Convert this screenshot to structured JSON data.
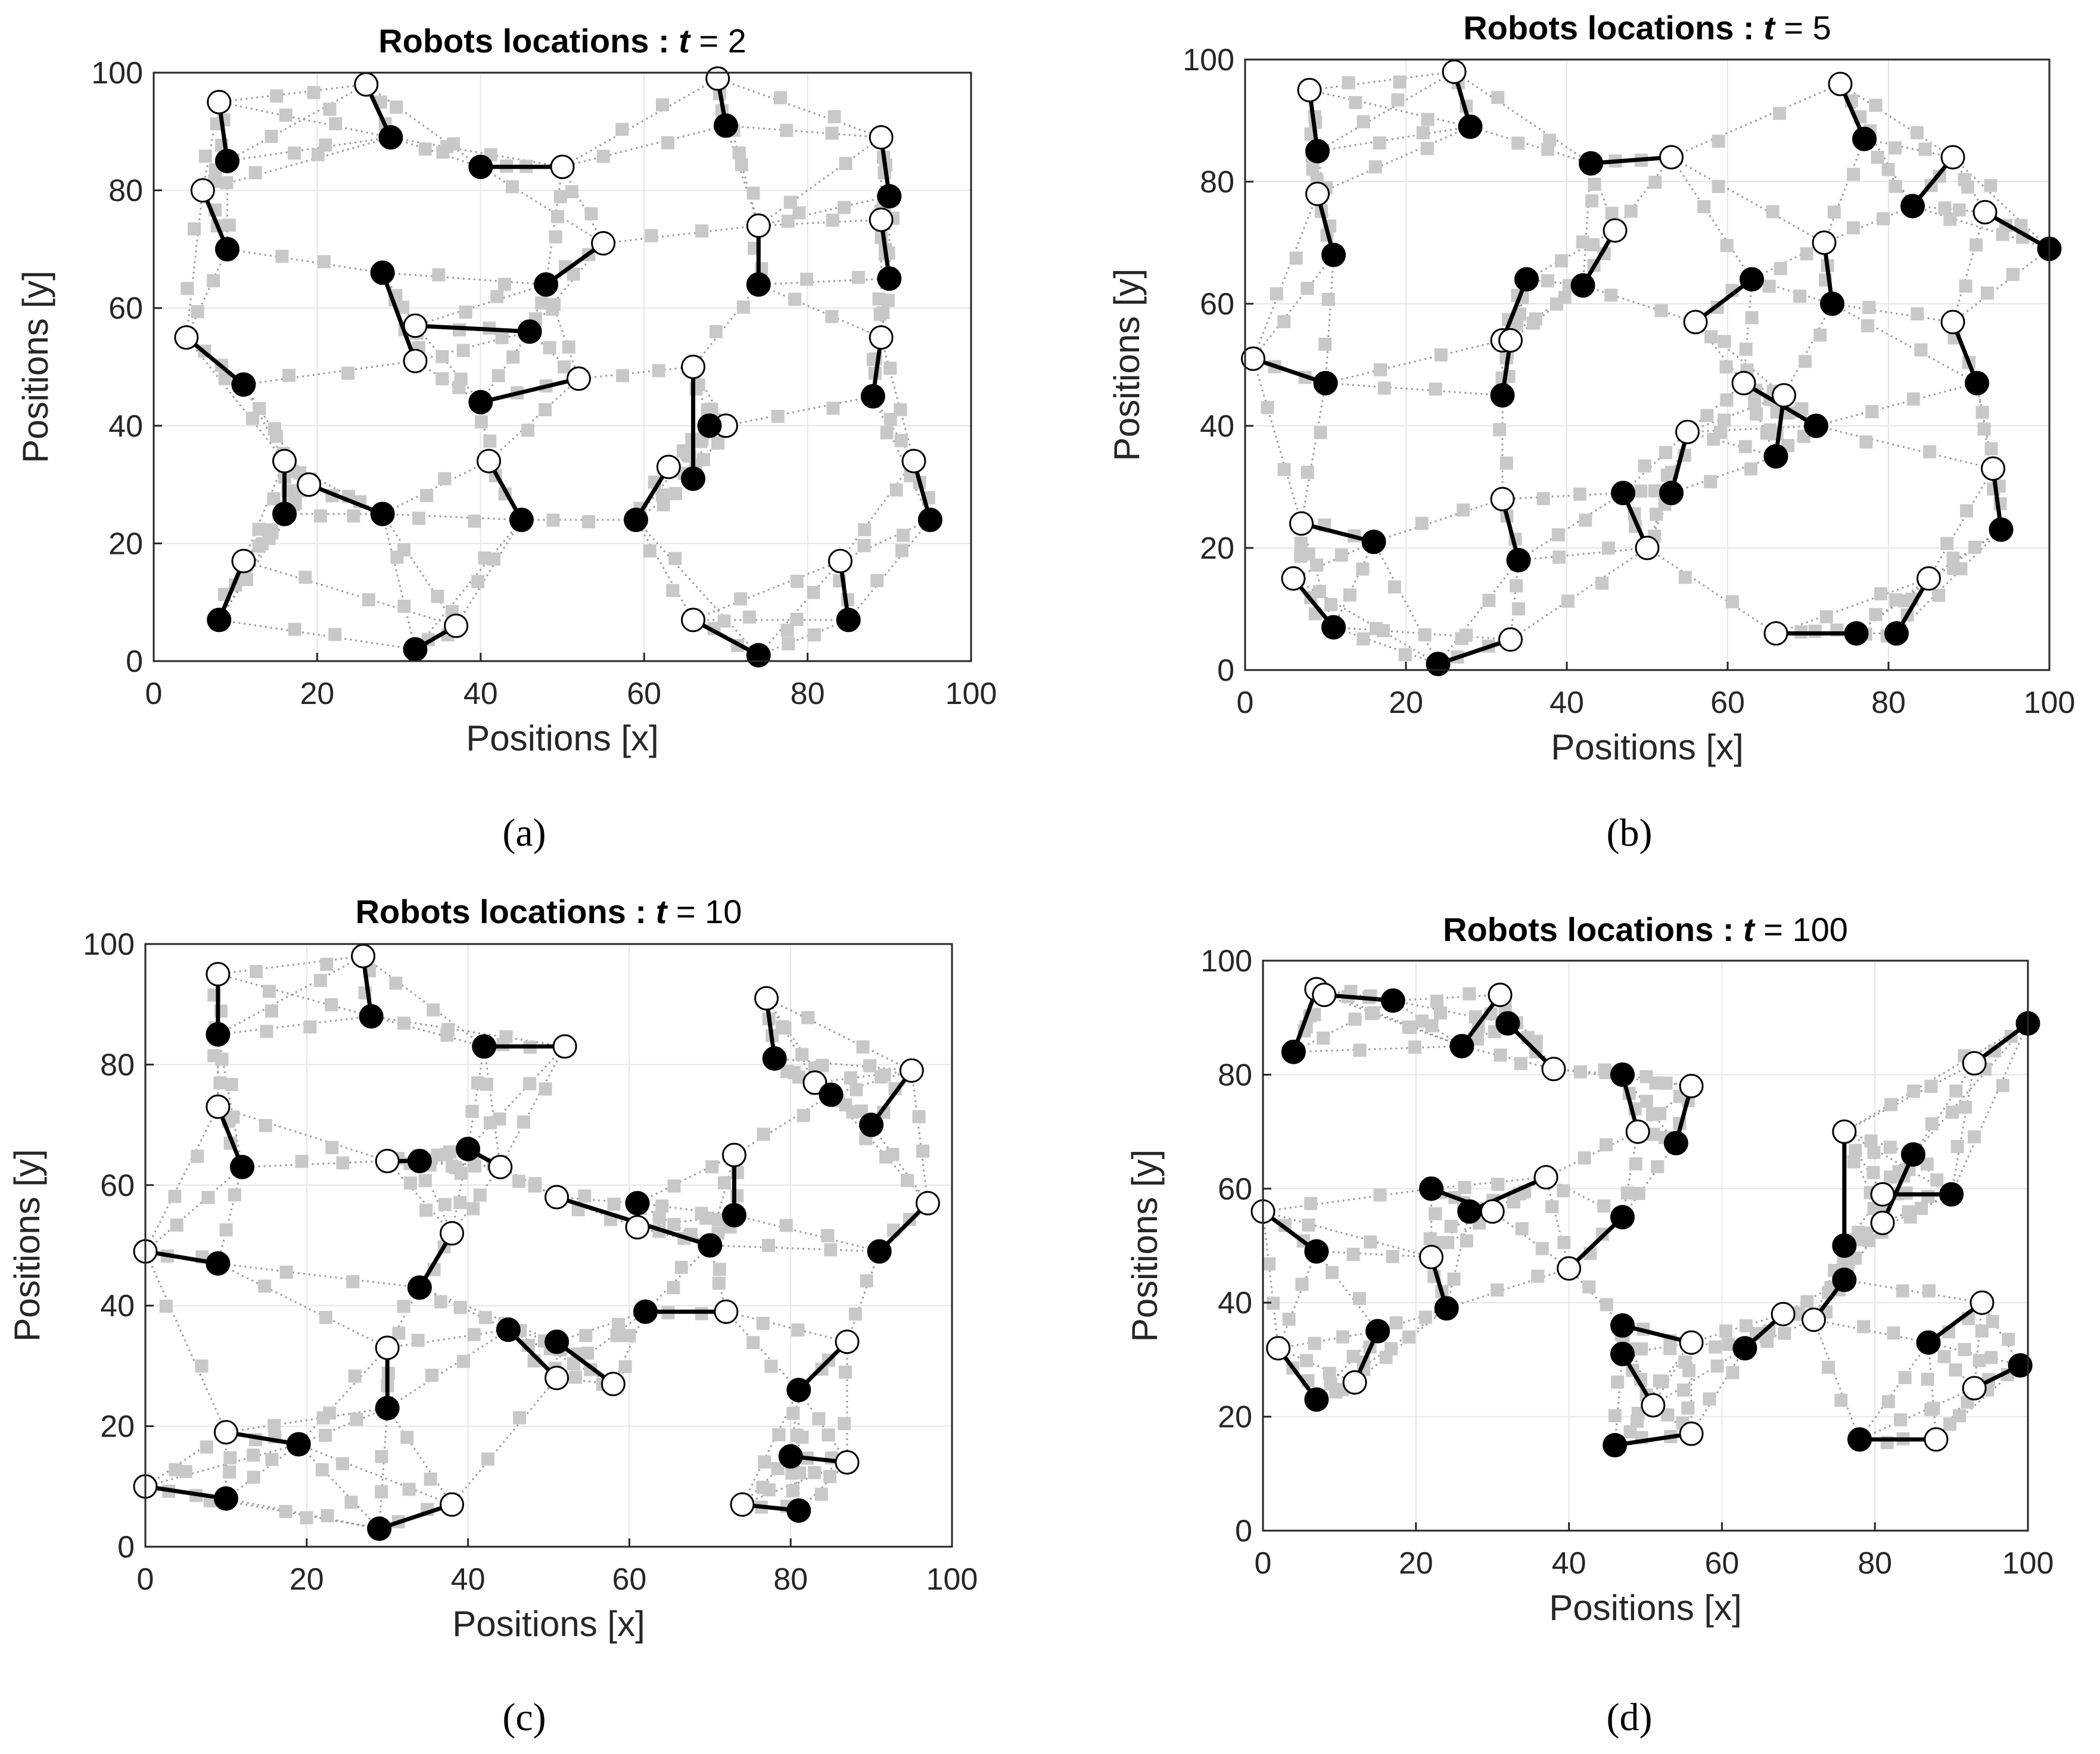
{
  "figure": {
    "panel_labels": [
      "(a)",
      "(b)",
      "(c)",
      "(d)"
    ]
  },
  "style": {
    "edge_color": "#9a9a9a",
    "square_color": "#c8c8c8",
    "link_color": "#000000",
    "robot_fill": "#000000",
    "target_fill": "#ffffff",
    "grid_color": "#e6e6e6",
    "axis_color": "#262626"
  },
  "chart_data": [
    {
      "type": "scatter",
      "title": "Robots locations :",
      "title_var": "t",
      "title_value": "= 2",
      "xlabel": "Positions [x]",
      "ylabel": "Positions [y]",
      "xlim": [
        0,
        100
      ],
      "ylim": [
        0,
        100
      ],
      "xticks": [
        "0",
        "20",
        "40",
        "60",
        "80",
        "100"
      ],
      "yticks": [
        "0",
        "20",
        "40",
        "60",
        "80",
        "100"
      ],
      "grid": true,
      "series": [
        {
          "role": "robot",
          "marker": "filled-circle",
          "points": [
            [
              9,
              85
            ],
            [
              9,
              70
            ],
            [
              29,
              89
            ],
            [
              40,
              84
            ],
            [
              48,
              64
            ],
            [
              46,
              56
            ],
            [
              28,
              66
            ],
            [
              40,
              44
            ],
            [
              11,
              47
            ],
            [
              16,
              25
            ],
            [
              28,
              25
            ],
            [
              45,
              24
            ],
            [
              32,
              2
            ],
            [
              8,
              7
            ],
            [
              59,
              24
            ],
            [
              66,
              31
            ],
            [
              68,
              40
            ],
            [
              74,
              64
            ],
            [
              70,
              91
            ],
            [
              90,
              79
            ],
            [
              90,
              65
            ],
            [
              88,
              45
            ],
            [
              95,
              24
            ],
            [
              85,
              7
            ],
            [
              74,
              1
            ]
          ]
        },
        {
          "role": "target",
          "marker": "open-circle",
          "points": [
            [
              8,
              95
            ],
            [
              6,
              80
            ],
            [
              26,
              98
            ],
            [
              50,
              84
            ],
            [
              55,
              71
            ],
            [
              32,
              57
            ],
            [
              32,
              51
            ],
            [
              52,
              48
            ],
            [
              4,
              55
            ],
            [
              16,
              34
            ],
            [
              19,
              30
            ],
            [
              41,
              34
            ],
            [
              37,
              6
            ],
            [
              11,
              17
            ],
            [
              63,
              33
            ],
            [
              66,
              50
            ],
            [
              70,
              40
            ],
            [
              74,
              74
            ],
            [
              69,
              99
            ],
            [
              89,
              89
            ],
            [
              89,
              75
            ],
            [
              89,
              55
            ],
            [
              93,
              34
            ],
            [
              84,
              17
            ],
            [
              66,
              7
            ]
          ]
        }
      ]
    },
    {
      "type": "scatter",
      "title": "Robots locations :",
      "title_var": "t",
      "title_value": "= 5",
      "xlabel": "Positions [x]",
      "ylabel": "Positions [y]",
      "xlim": [
        0,
        100
      ],
      "ylim": [
        0,
        100
      ],
      "xticks": [
        "0",
        "20",
        "40",
        "60",
        "80",
        "100"
      ],
      "yticks": [
        "0",
        "20",
        "40",
        "60",
        "80",
        "100"
      ],
      "grid": true,
      "series": [
        {
          "role": "robot",
          "marker": "filled-circle",
          "points": [
            [
              9,
              85
            ],
            [
              11,
              68
            ],
            [
              28,
              89
            ],
            [
              43,
              83
            ],
            [
              42,
              63
            ],
            [
              35,
              64
            ],
            [
              32,
              45
            ],
            [
              10,
              47
            ],
            [
              16,
              21
            ],
            [
              34,
              18
            ],
            [
              11,
              7
            ],
            [
              24,
              1
            ],
            [
              47,
              29
            ],
            [
              53,
              29
            ],
            [
              63,
              64
            ],
            [
              73,
              60
            ],
            [
              66,
              35
            ],
            [
              71,
              40
            ],
            [
              77,
              87
            ],
            [
              83,
              76
            ],
            [
              100,
              69
            ],
            [
              91,
              47
            ],
            [
              94,
              23
            ],
            [
              81,
              6
            ],
            [
              76,
              6
            ]
          ]
        },
        {
          "role": "target",
          "marker": "open-circle",
          "points": [
            [
              8,
              95
            ],
            [
              9,
              78
            ],
            [
              26,
              98
            ],
            [
              53,
              84
            ],
            [
              46,
              72
            ],
            [
              32,
              54
            ],
            [
              33,
              54
            ],
            [
              1,
              51
            ],
            [
              7,
              24
            ],
            [
              32,
              28
            ],
            [
              6,
              15
            ],
            [
              33,
              5
            ],
            [
              50,
              20
            ],
            [
              55,
              39
            ],
            [
              56,
              57
            ],
            [
              72,
              70
            ],
            [
              67,
              45
            ],
            [
              62,
              47
            ],
            [
              74,
              96
            ],
            [
              88,
              84
            ],
            [
              92,
              75
            ],
            [
              88,
              57
            ],
            [
              93,
              33
            ],
            [
              85,
              15
            ],
            [
              66,
              6
            ]
          ]
        }
      ]
    },
    {
      "type": "scatter",
      "title": "Robots locations :",
      "title_var": "t",
      "title_value": "= 10",
      "xlabel": "Positions [x]",
      "ylabel": "Positions [y]",
      "xlim": [
        0,
        100
      ],
      "ylim": [
        0,
        100
      ],
      "xticks": [
        "0",
        "20",
        "40",
        "60",
        "80",
        "100"
      ],
      "yticks": [
        "0",
        "20",
        "40",
        "60",
        "80",
        "100"
      ],
      "grid": true,
      "series": [
        {
          "role": "robot",
          "marker": "filled-circle",
          "points": [
            [
              9,
              85
            ],
            [
              12,
              63
            ],
            [
              28,
              88
            ],
            [
              42,
              83
            ],
            [
              34,
              64
            ],
            [
              40,
              66
            ],
            [
              9,
              47
            ],
            [
              34,
              43
            ],
            [
              19,
              17
            ],
            [
              10,
              8
            ],
            [
              30,
              23
            ],
            [
              29,
              3
            ],
            [
              45,
              36
            ],
            [
              51,
              34
            ],
            [
              61,
              57
            ],
            [
              62,
              39
            ],
            [
              70,
              50
            ],
            [
              73,
              55
            ],
            [
              78,
              81
            ],
            [
              85,
              75
            ],
            [
              90,
              70
            ],
            [
              91,
              49
            ],
            [
              81,
              26
            ],
            [
              80,
              15
            ],
            [
              81,
              6
            ]
          ]
        },
        {
          "role": "target",
          "marker": "open-circle",
          "points": [
            [
              9,
              95
            ],
            [
              9,
              73
            ],
            [
              27,
              98
            ],
            [
              52,
              83
            ],
            [
              30,
              64
            ],
            [
              44,
              63
            ],
            [
              0,
              49
            ],
            [
              38,
              52
            ],
            [
              10,
              19
            ],
            [
              0,
              10
            ],
            [
              30,
              33
            ],
            [
              38,
              7
            ],
            [
              51,
              28
            ],
            [
              58,
              27
            ],
            [
              61,
              53
            ],
            [
              72,
              39
            ],
            [
              51,
              58
            ],
            [
              73,
              65
            ],
            [
              77,
              91
            ],
            [
              83,
              77
            ],
            [
              95,
              79
            ],
            [
              97,
              57
            ],
            [
              87,
              34
            ],
            [
              87,
              14
            ],
            [
              74,
              7
            ]
          ]
        }
      ]
    },
    {
      "type": "scatter",
      "title": "Robots locations :",
      "title_var": "t",
      "title_value": "= 100",
      "xlabel": "Positions [x]",
      "ylabel": "Positions [y]",
      "xlim": [
        0,
        100
      ],
      "ylim": [
        0,
        100
      ],
      "xticks": [
        "0",
        "20",
        "40",
        "60",
        "80",
        "100"
      ],
      "yticks": [
        "0",
        "20",
        "40",
        "60",
        "80",
        "100"
      ],
      "grid": true,
      "series": [
        {
          "role": "robot",
          "marker": "filled-circle",
          "points": [
            [
              4,
              84
            ],
            [
              17,
              93
            ],
            [
              26,
              85
            ],
            [
              32,
              89
            ],
            [
              47,
              80
            ],
            [
              54,
              68
            ],
            [
              22,
              60
            ],
            [
              27,
              56
            ],
            [
              7,
              49
            ],
            [
              7,
              23
            ],
            [
              15,
              35
            ],
            [
              24,
              39
            ],
            [
              47,
              55
            ],
            [
              47,
              36
            ],
            [
              47,
              31
            ],
            [
              46,
              15
            ],
            [
              63,
              32
            ],
            [
              76,
              44
            ],
            [
              76,
              50
            ],
            [
              90,
              59
            ],
            [
              85,
              66
            ],
            [
              87,
              33
            ],
            [
              78,
              16
            ],
            [
              99,
              29
            ],
            [
              100,
              89
            ]
          ]
        },
        {
          "role": "target",
          "marker": "open-circle",
          "points": [
            [
              7,
              95
            ],
            [
              8,
              94
            ],
            [
              31,
              94
            ],
            [
              38,
              81
            ],
            [
              49,
              70
            ],
            [
              56,
              78
            ],
            [
              30,
              56
            ],
            [
              37,
              62
            ],
            [
              0,
              56
            ],
            [
              2,
              32
            ],
            [
              12,
              26
            ],
            [
              22,
              48
            ],
            [
              40,
              46
            ],
            [
              56,
              33
            ],
            [
              51,
              22
            ],
            [
              56,
              17
            ],
            [
              68,
              38
            ],
            [
              72,
              37
            ],
            [
              76,
              70
            ],
            [
              81,
              59
            ],
            [
              81,
              54
            ],
            [
              94,
              40
            ],
            [
              88,
              16
            ],
            [
              93,
              25
            ],
            [
              93,
              82
            ]
          ]
        }
      ]
    }
  ]
}
